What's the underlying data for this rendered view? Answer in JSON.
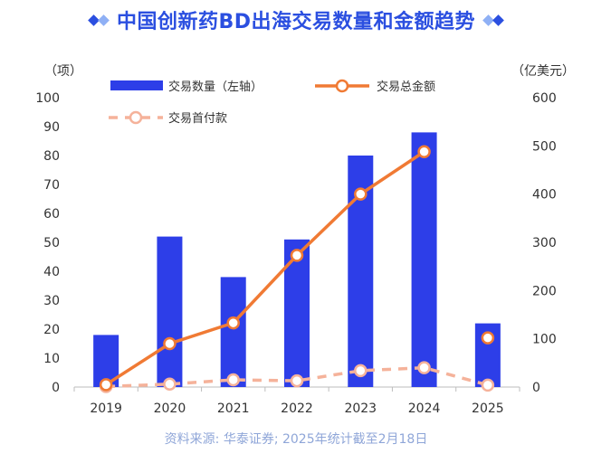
{
  "title": "中国创新药BD出海交易数量和金额趋势",
  "source": "资料来源: 华泰证券; 2025年统计截至2月18日",
  "colors": {
    "title": "#2b4fe0",
    "bar": "#2d3ee8",
    "total_line": "#f07a34",
    "upfront_line": "#f5b29a"
  },
  "chart_data": {
    "type": "bar",
    "categories": [
      "2019",
      "2020",
      "2021",
      "2022",
      "2023",
      "2024",
      "2025"
    ],
    "y_left": {
      "unit_label": "（项）",
      "range": [
        0,
        100
      ],
      "ticks": [
        0,
        10,
        20,
        30,
        40,
        50,
        60,
        70,
        80,
        90,
        100
      ]
    },
    "y_right": {
      "unit_label": "（亿美元）",
      "range": [
        0,
        600
      ],
      "ticks": [
        0,
        100,
        200,
        300,
        400,
        500,
        600
      ]
    },
    "series": [
      {
        "name": "交易数量（左轴）",
        "type": "bar",
        "axis": "left",
        "values": [
          18,
          52,
          38,
          51,
          80,
          88,
          22
        ]
      },
      {
        "name": "交易总金额",
        "type": "line",
        "axis": "right",
        "values": [
          5,
          90,
          133,
          273,
          400,
          488,
          102
        ]
      },
      {
        "name": "交易首付款",
        "type": "line-dashed",
        "axis": "right",
        "values": [
          1,
          6,
          15,
          13,
          34,
          40,
          4
        ]
      }
    ],
    "legend_position": "top"
  }
}
